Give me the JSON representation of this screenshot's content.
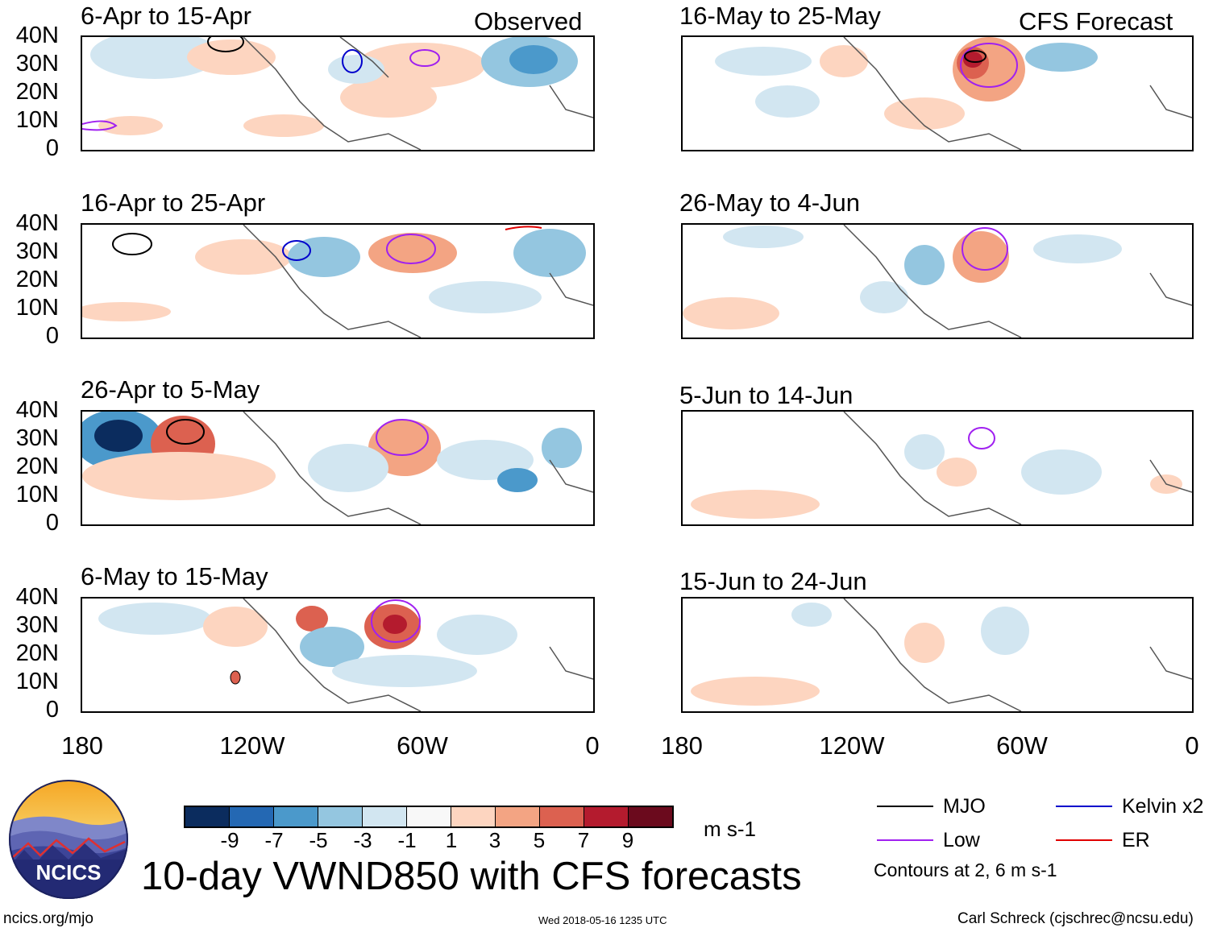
{
  "panels": [
    {
      "title": "6-Apr to 15-Apr",
      "tag": "Observed"
    },
    {
      "title": "16-Apr to 25-Apr",
      "tag": ""
    },
    {
      "title": "26-Apr to 5-May",
      "tag": ""
    },
    {
      "title": "6-May to 15-May",
      "tag": ""
    },
    {
      "title": "16-May to 25-May",
      "tag": "CFS Forecast"
    },
    {
      "title": "26-May to 4-Jun",
      "tag": ""
    },
    {
      "title": "5-Jun to 14-Jun",
      "tag": ""
    },
    {
      "title": "15-Jun to 24-Jun",
      "tag": ""
    }
  ],
  "lat_labels": [
    "40N",
    "30N",
    "20N",
    "10N",
    "0"
  ],
  "lon_labels": [
    "180",
    "120W",
    "60W",
    "0"
  ],
  "colorbar": {
    "ticks": [
      "-9",
      "-7",
      "-5",
      "-3",
      "-1",
      "1",
      "3",
      "5",
      "7",
      "9"
    ],
    "units": "m s-1",
    "colors": [
      "#0b2c5e",
      "#2468b3",
      "#4b99cb",
      "#94c6e0",
      "#d2e6f1",
      "#f8f8f8",
      "#fdd5c0",
      "#f3a483",
      "#dc6150",
      "#b41b2e",
      "#6b0a1d"
    ]
  },
  "legend": {
    "items": [
      {
        "label": "MJO",
        "color": "#000000"
      },
      {
        "label": "Kelvin x2",
        "color": "#0000cc"
      },
      {
        "label": "Low",
        "color": "#a020f0"
      },
      {
        "label": "ER",
        "color": "#e00000"
      }
    ],
    "note": "Contours at 2, 6 m s-1"
  },
  "logo_text": "NCICS",
  "main_title": "10-day VWND850 with CFS forecasts",
  "footer": {
    "left": "ncics.org/mjo",
    "center": "Wed 2018-05-16 1235 UTC",
    "right": "Carl Schreck (cjschrec@ncsu.edu)"
  }
}
